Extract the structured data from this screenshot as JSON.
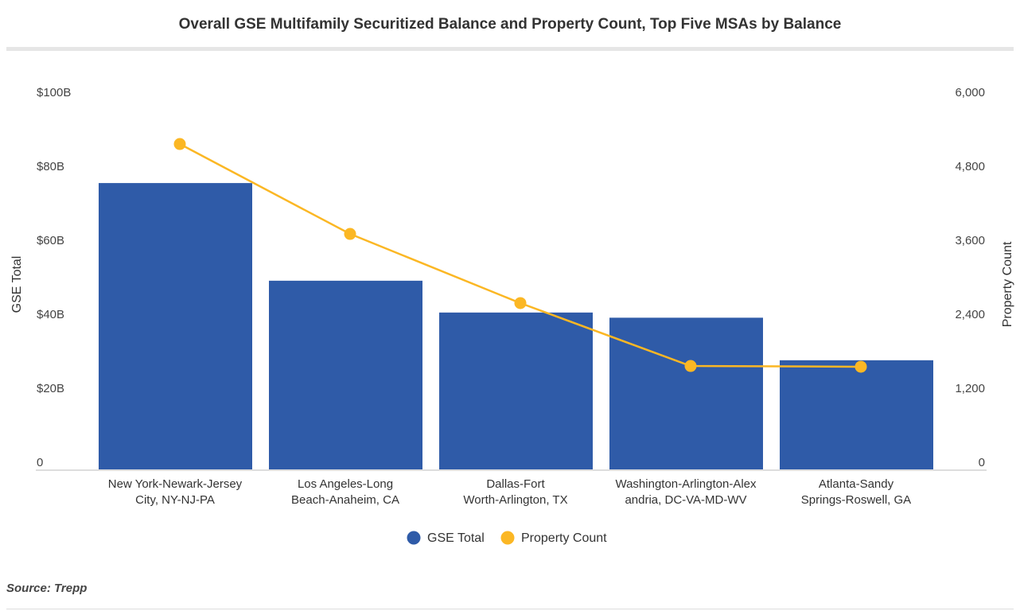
{
  "chart_data": {
    "type": "bar",
    "title": "Overall GSE Multifamily Securitized Balance and Property Count, Top Five MSAs by Balance",
    "categories": [
      [
        "New York-Newark-Jersey",
        "City, NY-NJ-PA"
      ],
      [
        "Los Angeles-Long",
        "Beach-Anaheim, CA"
      ],
      [
        "Dallas-Fort",
        "Worth-Arlington, TX"
      ],
      [
        "Washington-Arlington-Alex",
        "andria, DC-VA-MD-WV"
      ],
      [
        "Atlanta-Sandy",
        "Springs-Roswell, GA"
      ]
    ],
    "series": [
      {
        "name": "GSE Total",
        "type": "bar",
        "axis": "left",
        "unit": "$B",
        "color": "#2f5ba8",
        "values": [
          77.4,
          51.0,
          42.4,
          41.0,
          29.5
        ]
      },
      {
        "name": "Property Count",
        "type": "line",
        "axis": "right",
        "color": "#fbb724",
        "values": [
          5277,
          3819,
          2697,
          1677,
          1665
        ]
      }
    ],
    "ylabel": "GSE Total",
    "ylabel_right": "Property Count",
    "ylim": [
      0,
      100
    ],
    "ylim_right": [
      0,
      6000
    ],
    "yticks": [
      "0",
      "$20B",
      "$40B",
      "$60B",
      "$80B",
      "$100B"
    ],
    "yticks_right": [
      "0",
      "1,200",
      "2,400",
      "3,600",
      "4,800",
      "6,000"
    ],
    "grid": false,
    "legend": "bottom"
  },
  "source": "Source: Trepp"
}
